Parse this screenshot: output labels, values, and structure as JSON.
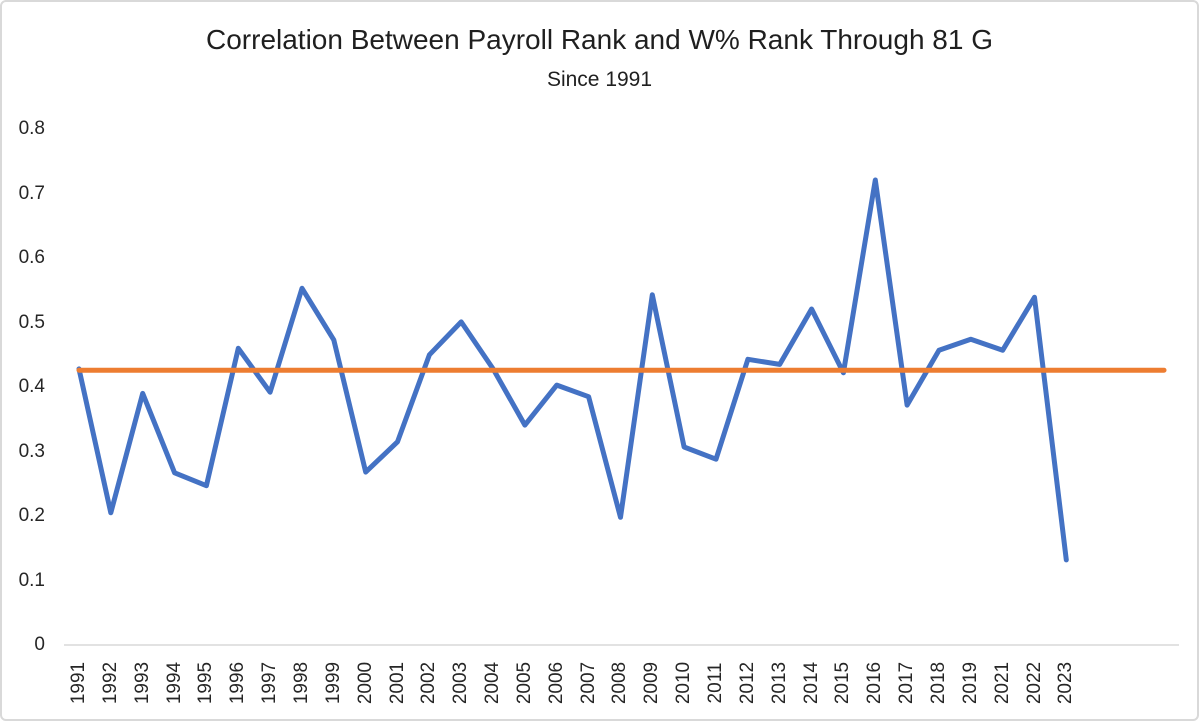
{
  "window": {
    "background": "#FFFFFF",
    "frame_border_color": "#D9D9D9"
  },
  "chart_data": {
    "type": "line",
    "title": "Correlation Between Payroll Rank and W% Rank Through 81 G",
    "subtitle": "Since 1991",
    "categories": [
      "1991",
      "1992",
      "1993",
      "1994",
      "1995",
      "1996",
      "1997",
      "1998",
      "1999",
      "2000",
      "2001",
      "2002",
      "2003",
      "2004",
      "2005",
      "2006",
      "2007",
      "2008",
      "2009",
      "2010",
      "2011",
      "2012",
      "2013",
      "2014",
      "2015",
      "2016",
      "2017",
      "2018",
      "2019",
      "2021",
      "2022",
      "2023"
    ],
    "series": [
      {
        "id": "correlation-by-year",
        "color": "#4472C4",
        "values": [
          0.428,
          0.205,
          0.39,
          0.267,
          0.247,
          0.46,
          0.392,
          0.553,
          0.473,
          0.268,
          0.315,
          0.45,
          0.501,
          0.428,
          0.341,
          0.403,
          0.385,
          0.198,
          0.543,
          0.307,
          0.288,
          0.443,
          0.435,
          0.521,
          0.422,
          0.721,
          0.372,
          0.457,
          0.474,
          0.457,
          0.539,
          0.132
        ]
      },
      {
        "id": "average-reference-line",
        "color": "#ED7D31",
        "constant_value": 0.426
      }
    ],
    "xlabel": "",
    "ylabel": "",
    "ylim": [
      0,
      0.8
    ],
    "yticks": [
      "0",
      "0.1",
      "0.2",
      "0.3",
      "0.4",
      "0.5",
      "0.6",
      "0.7",
      "0.8"
    ],
    "x_tick_rotation": -90,
    "legend": "none",
    "gridlines": "none",
    "axis_line_color": "#D9D9D9",
    "text_color": "#262626"
  }
}
